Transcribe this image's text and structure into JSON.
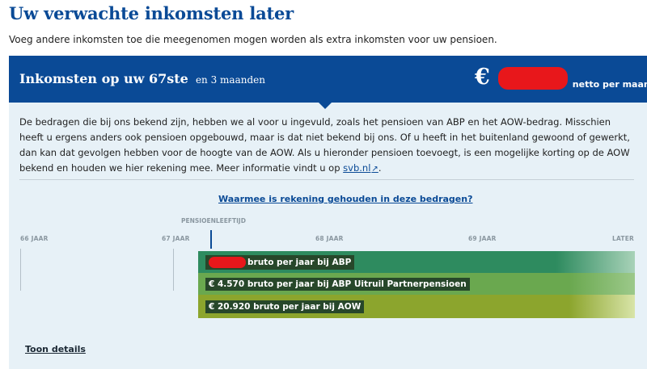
{
  "page": {
    "title": "Uw verwachte inkomsten later",
    "intro": "Voeg andere inkomsten toe die meegenomen mogen worden als extra inkomsten voor uw pensioen."
  },
  "panel": {
    "header_title": "Inkomsten op uw 67ste",
    "header_subtitle": "en 3 maanden",
    "currency_symbol": "€",
    "amount_unit": "netto per maand",
    "description_before_link": "De bedragen die bij ons bekend zijn, hebben we al voor u ingevuld, zoals het pensioen van ABP en het AOW-bedrag. Misschien heeft u ergens anders ook pensioen opgebouwd, maar is dat niet bekend bij ons. Of u heeft in het buitenland gewoond of gewerkt, dan kan dat gevolgen hebben voor de hoogte van de AOW. Als u hieronder pensioen toevoegt, is een mogelijke korting op de AOW bekend en houden we hier rekening mee. Meer informatie vindt u op",
    "description_link": "svb.nl",
    "description_after_link": ".",
    "explain_link": "Waarmee is rekening gehouden in deze bedragen?",
    "details_link": "Toon details"
  },
  "timeline": {
    "pension_age_label": "PENSIOENLEEFTIJD",
    "axis_labels": [
      "66 JAAR",
      "67 JAAR",
      "68 JAAR",
      "69 JAAR",
      "LATER"
    ],
    "bars": [
      {
        "amount": "",
        "label": "bruto per jaar bij ABP",
        "color": "#2e8b5f"
      },
      {
        "amount": "€ 4.570",
        "label": "bruto per jaar bij ABP Uitruil Partnerpensioen",
        "color": "#6aa84f"
      },
      {
        "amount": "€ 20.920",
        "label": "bruto per jaar bij AOW",
        "color": "#8ca52d"
      }
    ]
  },
  "colors": {
    "brand_blue": "#0a4a96",
    "panel_background": "#e7f1f7",
    "redaction": "#e8171b"
  },
  "icons": {
    "external_link": "external-link-icon"
  }
}
